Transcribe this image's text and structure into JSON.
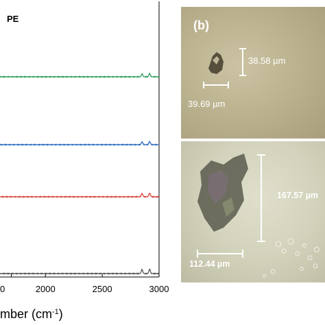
{
  "panel_a": {
    "series_label": "PE",
    "x_axis_label": "mber (cm",
    "x_axis_label_sup": "-1",
    "x_axis_label_close": ")",
    "x_tick_labels": [
      "0",
      "2000",
      "2500",
      "3000"
    ],
    "x_range": [
      1600,
      3000
    ],
    "spectrum_colors": [
      "#2e9e5e",
      "#2f6fc0",
      "#d9453f",
      "#555555"
    ]
  },
  "chart_data": {
    "type": "line",
    "xlabel": "mber (cm⁻¹)",
    "ylabel": "",
    "xlim": [
      1600,
      3000
    ],
    "x_ticks": [
      2000,
      2500,
      3000
    ],
    "title": "PE",
    "series": [
      {
        "color": "#2e9e5e",
        "baseline_offset": 3,
        "peaks": [
          {
            "x": 2850,
            "height": 0.35
          },
          {
            "x": 2917,
            "height": 0.4
          }
        ]
      },
      {
        "color": "#2f6fc0",
        "baseline_offset": 2,
        "peaks": [
          {
            "x": 2850,
            "height": 0.35
          },
          {
            "x": 2917,
            "height": 0.4
          }
        ]
      },
      {
        "color": "#d9453f",
        "baseline_offset": 1,
        "peaks": [
          {
            "x": 2850,
            "height": 0.4
          },
          {
            "x": 2917,
            "height": 0.45
          }
        ]
      },
      {
        "color": "#555555",
        "baseline_offset": 0,
        "peaks": [
          {
            "x": 2850,
            "height": 0.5
          },
          {
            "x": 2917,
            "height": 0.55
          }
        ]
      }
    ]
  },
  "panel_b": {
    "letter": "(b)",
    "height_label": "38.58 µm",
    "width_label": "39.69 µm"
  },
  "panel_c": {
    "height_label": "167.57 µm",
    "width_label": "112.44 µm"
  }
}
